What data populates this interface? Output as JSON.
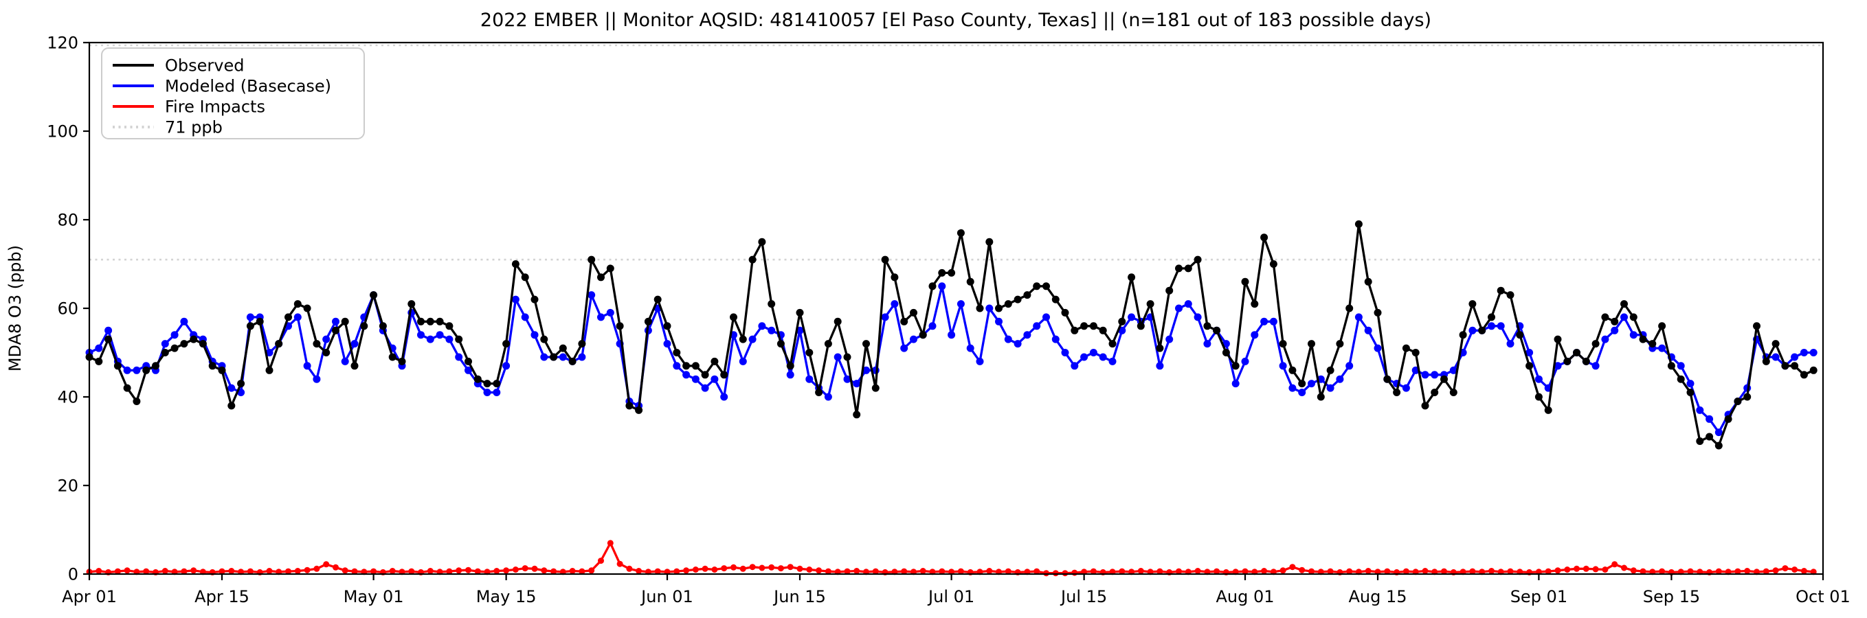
{
  "title": "2022 EMBER || Monitor AQSID: 481410057 [El Paso County, Texas] || (n=181 out of 183 possible days)",
  "axes": {
    "ylabel": "MDA8 O3 (ppb)",
    "ylim": [
      0,
      120
    ],
    "yticks": [
      0,
      20,
      40,
      60,
      80,
      100,
      120
    ],
    "xtick_labels": [
      "Apr 01",
      "Apr 15",
      "May 01",
      "May 15",
      "Jun 01",
      "Jun 15",
      "Jul 01",
      "Jul 15",
      "Aug 01",
      "Aug 15",
      "Sep 01",
      "Sep 15",
      "Oct 01"
    ],
    "xtick_days": [
      0,
      14,
      30,
      44,
      61,
      75,
      91,
      105,
      122,
      136,
      153,
      167,
      183
    ],
    "grid": false,
    "legend_position": "upper-left"
  },
  "legend": [
    {
      "label": "Observed",
      "color": "#000000",
      "style": "solid"
    },
    {
      "label": "Modeled (Basecase)",
      "color": "#0000ff",
      "style": "solid"
    },
    {
      "label": "Fire Impacts",
      "color": "#ff0000",
      "style": "solid"
    },
    {
      "label": "71 ppb",
      "color": "#d3d3d3",
      "style": "dotted"
    }
  ],
  "chart_data": {
    "type": "line",
    "title": "2022 EMBER || Monitor AQSID: 481410057 [El Paso County, Texas] || (n=181 out of 183 possible days)",
    "xlabel": "",
    "ylabel": "MDA8 O3 (ppb)",
    "ylim": [
      0,
      120
    ],
    "x_start_date": "Apr 01",
    "x_end_date": "Sep 30",
    "x_frequency": "daily",
    "n_points": 183,
    "reference_lines": [
      {
        "value": 71,
        "color": "#d3d3d3",
        "style": "dotted",
        "labeled_in_legend": true
      },
      {
        "value": 120,
        "color": "#d3d3d3",
        "style": "dotted",
        "labeled_in_legend": false
      }
    ],
    "months": [
      [
        "Apr",
        30
      ],
      [
        "May",
        31
      ],
      [
        "Jun",
        30
      ],
      [
        "Jul",
        31
      ],
      [
        "Aug",
        31
      ],
      [
        "Sep",
        30
      ]
    ],
    "series": [
      {
        "name": "Observed",
        "color": "#000000",
        "values": [
          49,
          48,
          53,
          47,
          42,
          39,
          46,
          47,
          50,
          51,
          52,
          53,
          52,
          47,
          46,
          38,
          43,
          56,
          57,
          46,
          52,
          58,
          61,
          60,
          52,
          50,
          55,
          57,
          47,
          56,
          63,
          56,
          49,
          48,
          61,
          57,
          57,
          57,
          56,
          53,
          48,
          44,
          43,
          43,
          52,
          70,
          67,
          62,
          53,
          49,
          51,
          48,
          52,
          71,
          67,
          69,
          56,
          38,
          37,
          57,
          62,
          56,
          50,
          47,
          47,
          45,
          48,
          45,
          58,
          53,
          71,
          75,
          61,
          52,
          47,
          59,
          50,
          41,
          52,
          57,
          49,
          36,
          52,
          42,
          71,
          67,
          57,
          59,
          54,
          65,
          68,
          68,
          77,
          66,
          60,
          75,
          60,
          61,
          62,
          63,
          65,
          65,
          62,
          59,
          55,
          56,
          56,
          55,
          52,
          57,
          67,
          56,
          61,
          51,
          64,
          69,
          69,
          71,
          56,
          55,
          50,
          47,
          66,
          61,
          76,
          70,
          52,
          46,
          43,
          52,
          40,
          46,
          52,
          60,
          79,
          66,
          59,
          44,
          41,
          51,
          50,
          38,
          41,
          44,
          41,
          54,
          61,
          55,
          58,
          64,
          63,
          54,
          47,
          40,
          37,
          53,
          48,
          50,
          48,
          52,
          58,
          57,
          61,
          58,
          53,
          52,
          56,
          47,
          44,
          41,
          30,
          31,
          29,
          35,
          39,
          40,
          56,
          48,
          52,
          47,
          47,
          45,
          46
        ]
      },
      {
        "name": "Modeled (Basecase)",
        "color": "#0000ff",
        "values": [
          50,
          51,
          55,
          48,
          46,
          46,
          47,
          46,
          52,
          54,
          57,
          54,
          53,
          48,
          47,
          42,
          41,
          58,
          58,
          50,
          52,
          56,
          58,
          47,
          44,
          53,
          57,
          48,
          52,
          58,
          63,
          55,
          51,
          47,
          59,
          54,
          53,
          54,
          53,
          49,
          46,
          43,
          41,
          41,
          47,
          62,
          58,
          54,
          49,
          49,
          49,
          48,
          49,
          63,
          58,
          59,
          52,
          39,
          38,
          55,
          60,
          52,
          47,
          45,
          44,
          42,
          44,
          40,
          54,
          48,
          53,
          56,
          55,
          54,
          45,
          55,
          44,
          42,
          40,
          49,
          44,
          43,
          46,
          46,
          58,
          61,
          51,
          53,
          54,
          56,
          65,
          54,
          61,
          51,
          48,
          60,
          57,
          53,
          52,
          54,
          56,
          58,
          53,
          50,
          47,
          49,
          50,
          49,
          48,
          55,
          58,
          57,
          58,
          47,
          53,
          60,
          61,
          58,
          52,
          55,
          52,
          43,
          48,
          54,
          57,
          57,
          47,
          42,
          41,
          43,
          44,
          42,
          44,
          47,
          58,
          55,
          51,
          44,
          43,
          42,
          46,
          45,
          45,
          45,
          46,
          50,
          55,
          55,
          56,
          56,
          52,
          56,
          50,
          44,
          42,
          47,
          48,
          50,
          48,
          47,
          53,
          55,
          58,
          54,
          54,
          51,
          51,
          49,
          47,
          43,
          37,
          35,
          32,
          36,
          39,
          42,
          53,
          49,
          49,
          47,
          49,
          50,
          50
        ]
      },
      {
        "name": "Fire Impacts",
        "color": "#ff0000",
        "values": [
          0.5,
          0.7,
          0.4,
          0.6,
          0.8,
          0.5,
          0.6,
          0.4,
          0.7,
          0.5,
          0.6,
          0.8,
          0.5,
          0.4,
          0.6,
          0.7,
          0.5,
          0.6,
          0.4,
          0.7,
          0.5,
          0.6,
          0.7,
          0.9,
          1.2,
          2.2,
          1.5,
          0.8,
          0.6,
          0.5,
          0.6,
          0.4,
          0.7,
          0.5,
          0.6,
          0.4,
          0.7,
          0.5,
          0.6,
          0.8,
          0.9,
          0.6,
          0.5,
          0.7,
          0.8,
          1.0,
          1.3,
          1.2,
          0.8,
          0.6,
          0.5,
          0.7,
          0.6,
          0.8,
          3.0,
          7.0,
          2.3,
          1.2,
          0.7,
          0.5,
          0.6,
          0.5,
          0.6,
          0.8,
          1.0,
          1.2,
          1.0,
          1.3,
          1.5,
          1.2,
          1.6,
          1.4,
          1.5,
          1.3,
          1.6,
          1.2,
          1.0,
          0.8,
          0.6,
          0.5,
          0.6,
          0.7,
          0.5,
          0.6,
          0.4,
          0.5,
          0.6,
          0.5,
          0.7,
          0.5,
          0.6,
          0.5,
          0.6,
          0.4,
          0.5,
          0.7,
          0.5,
          0.6,
          0.4,
          0.5,
          0.6,
          0.2,
          0.2,
          0.2,
          0.3,
          0.5,
          0.6,
          0.4,
          0.5,
          0.6,
          0.5,
          0.7,
          0.5,
          0.6,
          0.4,
          0.6,
          0.5,
          0.7,
          0.5,
          0.6,
          0.4,
          0.5,
          0.6,
          0.5,
          0.7,
          0.5,
          0.8,
          1.6,
          0.9,
          0.6,
          0.5,
          0.6,
          0.4,
          0.6,
          0.5,
          0.7,
          0.5,
          0.6,
          0.4,
          0.6,
          0.5,
          0.7,
          0.5,
          0.6,
          0.4,
          0.5,
          0.6,
          0.5,
          0.7,
          0.5,
          0.6,
          0.5,
          0.4,
          0.5,
          0.6,
          0.8,
          1.0,
          1.2,
          1.2,
          1.1,
          1.0,
          2.2,
          1.4,
          0.8,
          0.6,
          0.5,
          0.6,
          0.4,
          0.5,
          0.6,
          0.5,
          0.4,
          0.6,
          0.5,
          0.6,
          0.7,
          0.5,
          0.6,
          0.8,
          1.3,
          1.0,
          0.7,
          0.5
        ]
      }
    ]
  }
}
